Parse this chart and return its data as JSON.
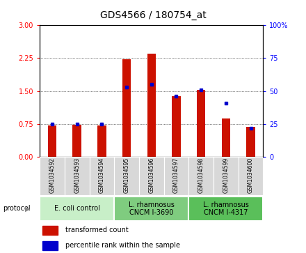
{
  "title": "GDS4566 / 180754_at",
  "samples": [
    "GSM1034592",
    "GSM1034593",
    "GSM1034594",
    "GSM1034595",
    "GSM1034596",
    "GSM1034597",
    "GSM1034598",
    "GSM1034599",
    "GSM1034600"
  ],
  "transformed_count": [
    0.72,
    0.73,
    0.72,
    2.22,
    2.35,
    1.38,
    1.52,
    0.88,
    0.68
  ],
  "percentile_rank": [
    25,
    25,
    25,
    53,
    55,
    46,
    51,
    41,
    22
  ],
  "protocols": [
    {
      "label": "E. coli control",
      "indices": [
        0,
        1,
        2
      ],
      "color": "#c8efc8"
    },
    {
      "label": "L. rhamnosus\nCNCM I-3690",
      "indices": [
        3,
        4,
        5
      ],
      "color": "#7fcc7f"
    },
    {
      "label": "L. rhamnosus\nCNCM I-4317",
      "indices": [
        6,
        7,
        8
      ],
      "color": "#5abf5a"
    }
  ],
  "ylim_left": [
    0,
    3
  ],
  "ylim_right": [
    0,
    100
  ],
  "yticks_left": [
    0,
    0.75,
    1.5,
    2.25,
    3
  ],
  "yticks_right": [
    0,
    25,
    50,
    75,
    100
  ],
  "bar_color": "#cc1100",
  "dot_color": "#0000cc",
  "legend_items": [
    "transformed count",
    "percentile rank within the sample"
  ],
  "background_color": "#ffffff",
  "sample_box_color": "#d8d8d8",
  "bar_width": 0.35,
  "title_fontsize": 10,
  "tick_fontsize": 7,
  "sample_fontsize": 5.5,
  "protocol_fontsize": 7,
  "legend_fontsize": 7
}
